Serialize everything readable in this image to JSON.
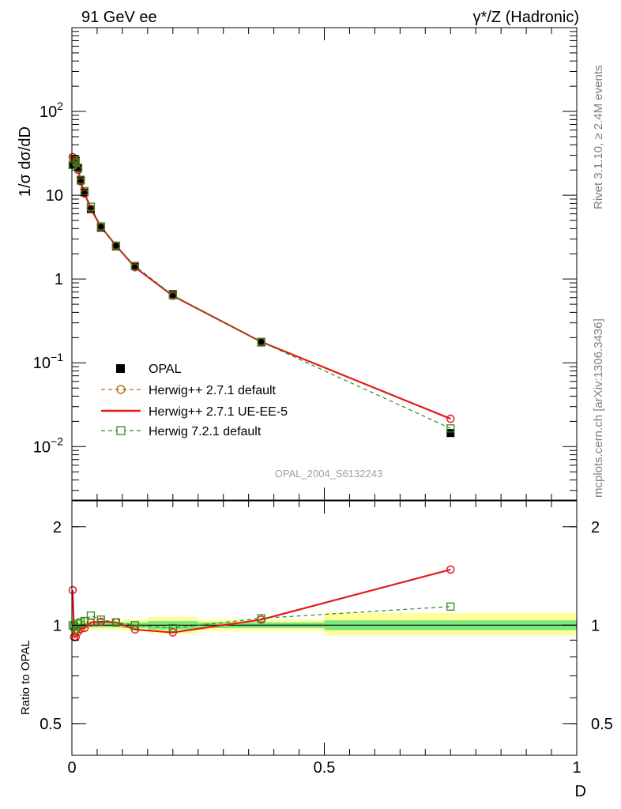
{
  "header": {
    "left": "91 GeV ee",
    "right": "γ*/Z (Hadronic)"
  },
  "side_labels": {
    "rivet": "Rivet 3.1.10, ≥ 2.4M events",
    "mcplots": "mcplots.cern.ch [arXiv:1306.3436]"
  },
  "watermark": "OPAL_2004_S6132243",
  "colors": {
    "data": "#000000",
    "herwig_271_default": "#b5651d",
    "herwig_271_ueee5": "#e31a1c",
    "herwig_721_default": "#2e8b1e",
    "band_inner": "#7ee87e",
    "band_outer": "#ffff99"
  },
  "chart_data": [
    {
      "name": "main",
      "type": "line",
      "yscale": "log",
      "ylabel": "1/σ dσ/dD",
      "xlim": [
        0,
        1
      ],
      "ylim": [
        0.0023,
        1000
      ],
      "ytick_labels": [
        {
          "value": 0.01,
          "base": "10",
          "exp": "−2"
        },
        {
          "value": 0.1,
          "base": "10",
          "exp": "−1"
        },
        {
          "value": 1,
          "base": "1",
          "exp": ""
        },
        {
          "value": 10,
          "base": "10",
          "exp": ""
        },
        {
          "value": 100,
          "base": "10",
          "exp": "2"
        }
      ],
      "x": [
        0.0015,
        0.0045,
        0.0075,
        0.0125,
        0.0175,
        0.025,
        0.0375,
        0.0575,
        0.0875,
        0.125,
        0.2,
        0.375,
        0.75
      ],
      "legend": {
        "placement": "middle-left",
        "entries": [
          "OPAL",
          "Herwig++ 2.7.1 default",
          "Herwig++ 2.7.1 UE-EE-5",
          "Herwig 7.2.1 default"
        ]
      },
      "series": [
        {
          "name": "OPAL",
          "style": "filled-square",
          "values": [
            23,
            27,
            26,
            21,
            15,
            10.8,
            6.8,
            4.1,
            2.45,
            1.42,
            0.66,
            0.175,
            0.0145
          ]
        },
        {
          "name": "Herwig++ 2.7.1 default",
          "style": "dashed-open-circle",
          "values": [
            28.5,
            26,
            24.5,
            20,
            14.6,
            10.5,
            6.9,
            4.2,
            2.5,
            1.38,
            0.63,
            0.178,
            0.0215
          ]
        },
        {
          "name": "Herwig++ 2.7.1 UE-EE-5",
          "style": "solid-line",
          "values": [
            28.5,
            26,
            24.5,
            20,
            14.6,
            10.5,
            6.9,
            4.2,
            2.5,
            1.38,
            0.63,
            0.178,
            0.0215
          ]
        },
        {
          "name": "Herwig 7.2.1 default",
          "style": "dashed-open-square",
          "values": [
            23,
            27,
            24.8,
            21.3,
            15.3,
            11.2,
            7.3,
            4.25,
            2.5,
            1.43,
            0.64,
            0.178,
            0.0165
          ]
        }
      ]
    },
    {
      "name": "ratio",
      "type": "line",
      "yscale": "log",
      "ylabel": "Ratio to OPAL",
      "xlabel": "D",
      "xlim": [
        0,
        1
      ],
      "ylim": [
        0.4,
        2.4
      ],
      "ytick_labels": [
        {
          "value": 0.5,
          "label": "0.5"
        },
        {
          "value": 1,
          "label": "1"
        },
        {
          "value": 2,
          "label": "2"
        }
      ],
      "xtick_labels": [
        {
          "value": 0,
          "label": "0"
        },
        {
          "value": 0.5,
          "label": "0.5"
        },
        {
          "value": 1,
          "label": "1"
        }
      ],
      "x": [
        0.0015,
        0.0045,
        0.0075,
        0.0125,
        0.0175,
        0.025,
        0.0375,
        0.0575,
        0.0875,
        0.125,
        0.2,
        0.375,
        0.75
      ],
      "bands": [
        {
          "x0": 0.0,
          "x1": 0.003,
          "inner": [
            0.975,
            1.025
          ],
          "outer": [
            0.95,
            1.05
          ]
        },
        {
          "x0": 0.003,
          "x1": 0.006,
          "inner": [
            0.975,
            1.025
          ],
          "outer": [
            0.95,
            1.05
          ]
        },
        {
          "x0": 0.006,
          "x1": 0.009,
          "inner": [
            0.975,
            1.025
          ],
          "outer": [
            0.95,
            1.05
          ]
        },
        {
          "x0": 0.009,
          "x1": 0.015,
          "inner": [
            0.98,
            1.02
          ],
          "outer": [
            0.96,
            1.04
          ]
        },
        {
          "x0": 0.015,
          "x1": 0.02,
          "inner": [
            0.98,
            1.02
          ],
          "outer": [
            0.96,
            1.04
          ]
        },
        {
          "x0": 0.02,
          "x1": 0.03,
          "inner": [
            0.98,
            1.02
          ],
          "outer": [
            0.96,
            1.04
          ]
        },
        {
          "x0": 0.03,
          "x1": 0.045,
          "inner": [
            0.985,
            1.015
          ],
          "outer": [
            0.97,
            1.03
          ]
        },
        {
          "x0": 0.045,
          "x1": 0.07,
          "inner": [
            0.985,
            1.015
          ],
          "outer": [
            0.97,
            1.03
          ]
        },
        {
          "x0": 0.07,
          "x1": 0.1,
          "inner": [
            0.985,
            1.015
          ],
          "outer": [
            0.97,
            1.03
          ]
        },
        {
          "x0": 0.1,
          "x1": 0.15,
          "inner": [
            0.98,
            1.02
          ],
          "outer": [
            0.96,
            1.04
          ]
        },
        {
          "x0": 0.15,
          "x1": 0.25,
          "inner": [
            0.97,
            1.03
          ],
          "outer": [
            0.94,
            1.06
          ]
        },
        {
          "x0": 0.25,
          "x1": 0.5,
          "inner": [
            0.98,
            1.02
          ],
          "outer": [
            0.96,
            1.04
          ]
        },
        {
          "x0": 0.5,
          "x1": 1.0,
          "inner": [
            0.965,
            1.035
          ],
          "outer": [
            0.93,
            1.09
          ]
        }
      ],
      "series": [
        {
          "name": "Herwig++ 2.7.1 default",
          "style": "dashed-open-circle",
          "values": [
            1.28,
            0.92,
            0.92,
            0.955,
            0.975,
            0.98,
            1.02,
            1.025,
            1.02,
            0.97,
            0.95,
            1.04,
            1.48
          ]
        },
        {
          "name": "Herwig++ 2.7.1 UE-EE-5",
          "style": "solid-line",
          "values": [
            1.28,
            0.92,
            0.92,
            0.955,
            0.975,
            0.98,
            1.02,
            1.025,
            1.02,
            0.97,
            0.95,
            1.04,
            1.48
          ]
        },
        {
          "name": "Herwig 7.2.1 default",
          "style": "dashed-open-square",
          "values": [
            1.0,
            0.99,
            0.97,
            1.01,
            1.02,
            1.03,
            1.07,
            1.04,
            1.02,
            1.0,
            0.98,
            1.05,
            1.14
          ]
        }
      ]
    }
  ]
}
